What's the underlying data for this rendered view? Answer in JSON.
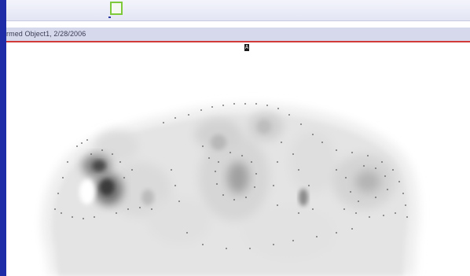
{
  "viewer": {
    "info_text": "rmed Object1, 2/28/2006",
    "orientation_marker": "A"
  },
  "toolbar": {
    "selector_color": "#7ec93a"
  },
  "colors": {
    "slide_background": "#1d2aa6",
    "info_bar_underline": "#d23a3a",
    "toolbar_background": "#e3e5f4"
  },
  "image": {
    "content": "grayscale transverse PET scan slice",
    "icon": "scan-image"
  }
}
